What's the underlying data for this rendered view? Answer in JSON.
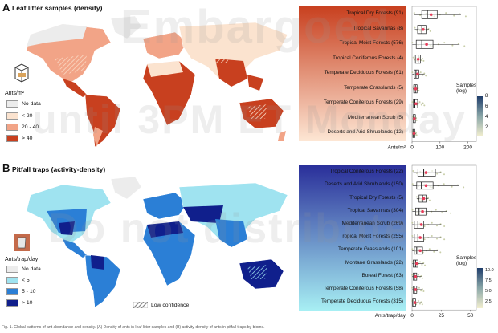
{
  "panelA": {
    "letter": "A",
    "title": "Leaf litter samples (density)",
    "legend_title": "Ants/m²",
    "legend": [
      {
        "label": "No data",
        "color": "#ececec"
      },
      {
        "label": "< 20",
        "color": "#fbe3cf"
      },
      {
        "label": "20 - 40",
        "color": "#f2a487"
      },
      {
        "label": "> 40",
        "color": "#c8401f"
      }
    ],
    "samples_legend_title": "Samples\n(log)",
    "samples_ticks": [
      "8",
      "6",
      "4",
      "2"
    ]
  },
  "panelB": {
    "letter": "B",
    "title": "Pitfall traps (activity-density)",
    "legend_title": "Ants/trap/day",
    "legend": [
      {
        "label": "No data",
        "color": "#ececec"
      },
      {
        "label": "< 5",
        "color": "#9fe3f0"
      },
      {
        "label": "5 - 10",
        "color": "#2b7fd6"
      },
      {
        "label": "> 10",
        "color": "#101f8c"
      }
    ],
    "low_confidence": "Low confidence",
    "samples_legend_title": "Samples\n(log)",
    "samples_ticks": [
      "10.0",
      "7.5",
      "5.0",
      "2.5"
    ]
  },
  "watermark": [
    "Embargoed",
    "until 3PM ET Monday",
    "Do not distribute"
  ],
  "caption": "Fig. 1. Global patterns of ant abundance and density. (A) Density of ants in leaf litter samples and (B) activity-density of ants in pitfall traps by biome.",
  "chart_data": [
    {
      "type": "box",
      "title": "Leaf litter samples (density)",
      "xlabel": "Ants/m²",
      "xlim": [
        0,
        230
      ],
      "xticks": [
        "0",
        "100",
        "200"
      ],
      "xtick_values": [
        0,
        100,
        200
      ],
      "categories": [
        {
          "biome": "Tropical Dry Forests",
          "n": "(91)",
          "q1": 35,
          "median": 55,
          "q3": 90,
          "whisker_lo": 8,
          "whisker_hi": 175,
          "mean": 68,
          "color": "#c8401f"
        },
        {
          "biome": "Tropical Savannas",
          "n": "(8)",
          "q1": 20,
          "median": 35,
          "q3": 50,
          "whisker_lo": 10,
          "whisker_hi": 60,
          "mean": 40,
          "color": "#c8401f"
        },
        {
          "biome": "Tropical Moist Forests",
          "n": "(576)",
          "q1": 15,
          "median": 35,
          "q3": 75,
          "whisker_lo": 1,
          "whisker_hi": 170,
          "mean": 52,
          "color": "#c8401f"
        },
        {
          "biome": "Tropical Coniferous Forests",
          "n": "(4)",
          "q1": 12,
          "median": 22,
          "q3": 30,
          "whisker_lo": 5,
          "whisker_hi": 38,
          "mean": 22,
          "color": "#f2a487"
        },
        {
          "biome": "Temperate Deciduous Forests",
          "n": "(61)",
          "q1": 8,
          "median": 14,
          "q3": 24,
          "whisker_lo": 1,
          "whisker_hi": 45,
          "mean": 20,
          "color": "#f2a487"
        },
        {
          "biome": "Temperate Grasslands",
          "n": "(5)",
          "q1": 6,
          "median": 12,
          "q3": 18,
          "whisker_lo": 3,
          "whisker_hi": 22,
          "mean": 13,
          "color": "#fbe3cf"
        },
        {
          "biome": "Temperate Coniferous Forests",
          "n": "(29)",
          "q1": 5,
          "median": 10,
          "q3": 20,
          "whisker_lo": 1,
          "whisker_hi": 40,
          "mean": 14,
          "color": "#fbe3cf"
        },
        {
          "biome": "Mediterranean Scrub",
          "n": "(5)",
          "q1": 4,
          "median": 7,
          "q3": 12,
          "whisker_lo": 2,
          "whisker_hi": 15,
          "mean": 8,
          "color": "#fbe3cf"
        },
        {
          "biome": "Deserts and Arid Shrublands",
          "n": "(12)",
          "q1": 3,
          "median": 6,
          "q3": 10,
          "whisker_lo": 1,
          "whisker_hi": 15,
          "mean": 7,
          "color": "#fbe3cf"
        }
      ]
    },
    {
      "type": "box",
      "title": "Pitfall traps (activity-density)",
      "xlabel": "Ants/trap/day",
      "xlim": [
        0,
        55
      ],
      "xticks": [
        "0",
        "25",
        "50"
      ],
      "xtick_values": [
        0,
        25,
        50
      ],
      "categories": [
        {
          "biome": "Tropical Coniferous Forests",
          "n": "(22)",
          "q1": 5,
          "median": 10,
          "q3": 20,
          "whisker_lo": 1,
          "whisker_hi": 25,
          "mean": 12,
          "color": "#101f8c"
        },
        {
          "biome": "Deserts and Arid Shrublands",
          "n": "(150)",
          "q1": 4,
          "median": 8,
          "q3": 18,
          "whisker_lo": 0.5,
          "whisker_hi": 40,
          "mean": 12,
          "color": "#101f8c"
        },
        {
          "biome": "Tropical Dry Forests",
          "n": "(5)",
          "q1": 6,
          "median": 9,
          "q3": 12,
          "whisker_lo": 4,
          "whisker_hi": 14,
          "mean": 10,
          "color": "#101f8c"
        },
        {
          "biome": "Tropical Savannas",
          "n": "(304)",
          "q1": 3,
          "median": 6,
          "q3": 12,
          "whisker_lo": 0.3,
          "whisker_hi": 30,
          "mean": 9,
          "color": "#2b7fd6"
        },
        {
          "biome": "Mediterranean Scrub",
          "n": "(269)",
          "q1": 2,
          "median": 5,
          "q3": 10,
          "whisker_lo": 0.2,
          "whisker_hi": 25,
          "mean": 8,
          "color": "#2b7fd6"
        },
        {
          "biome": "Tropical Moist  Forests",
          "n": "(255)",
          "q1": 2,
          "median": 5,
          "q3": 10,
          "whisker_lo": 0.2,
          "whisker_hi": 25,
          "mean": 7,
          "color": "#2b7fd6"
        },
        {
          "biome": "Temperate Grasslands",
          "n": "(101)",
          "q1": 2,
          "median": 4,
          "q3": 9,
          "whisker_lo": 0.2,
          "whisker_hi": 22,
          "mean": 7,
          "color": "#2b7fd6"
        },
        {
          "biome": "Montane Grasslands",
          "n": "(22)",
          "q1": 1,
          "median": 3,
          "q3": 5,
          "whisker_lo": 0.2,
          "whisker_hi": 10,
          "mean": 4,
          "color": "#9fe3f0"
        },
        {
          "biome": "Boreal Forest",
          "n": "(63)",
          "q1": 1,
          "median": 2,
          "q3": 4,
          "whisker_lo": 0.1,
          "whisker_hi": 8,
          "mean": 3,
          "color": "#9fe3f0"
        },
        {
          "biome": "Temperate Coniferous Forests",
          "n": "(58)",
          "q1": 1,
          "median": 2,
          "q3": 4,
          "whisker_lo": 0.1,
          "whisker_hi": 9,
          "mean": 3,
          "color": "#9fe3f0"
        },
        {
          "biome": "Temperate Deciduous Forests",
          "n": "(315)",
          "q1": 0.5,
          "median": 1.5,
          "q3": 3,
          "whisker_lo": 0.1,
          "whisker_hi": 8,
          "mean": 2.5,
          "color": "#9fe3f0"
        }
      ]
    }
  ]
}
